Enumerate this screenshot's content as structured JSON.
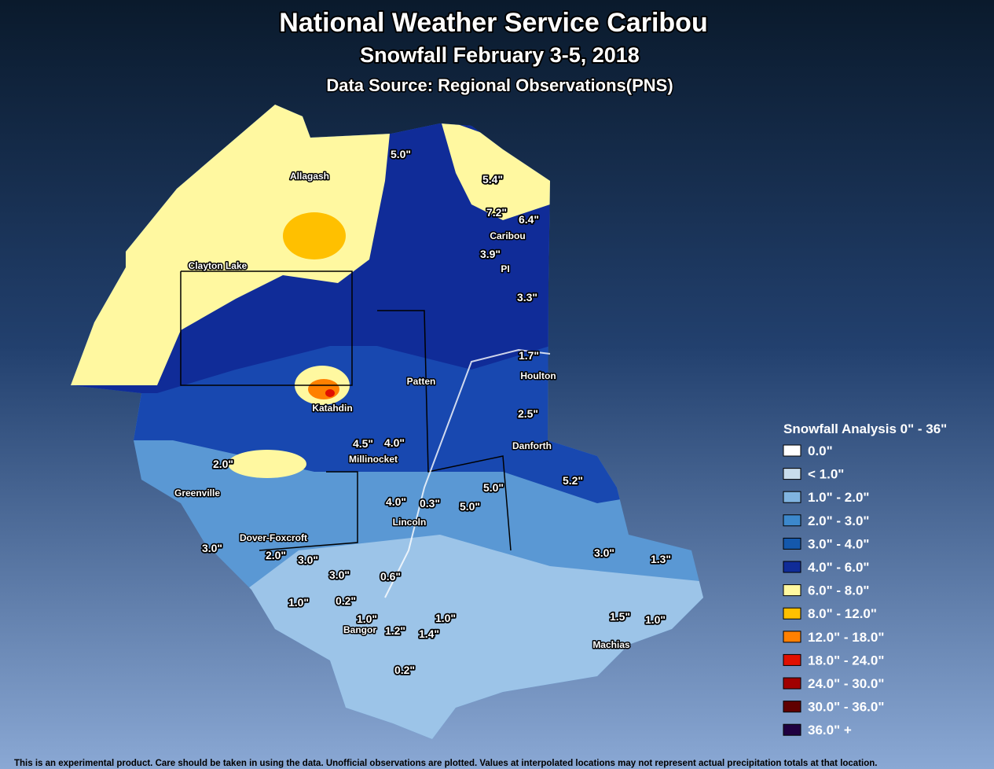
{
  "header": {
    "title": "National Weather Service Caribou",
    "subtitle": "Snowfall February 3-5, 2018",
    "source": "Data Source: Regional Observations(PNS)"
  },
  "places": [
    "Allagash",
    "Clayton Lake",
    "Caribou",
    "PI",
    "Patten",
    "Houlton",
    "Katahdin",
    "Millinocket",
    "Danforth",
    "Greenville",
    "Lincoln",
    "Dover-Foxcroft",
    "Bangor",
    "Machias"
  ],
  "observations": [
    "5.0\"",
    "5.4\"",
    "7.2\"",
    "6.4\"",
    "3.9\"",
    "3.3\"",
    "1.7\"",
    "2.5\"",
    "4.5\"",
    "4.0\"",
    "2.0\"",
    "5.0\"",
    "5.2\"",
    "4.0\"",
    "0.3\"",
    "5.0\"",
    "3.0\"",
    "2.0\"",
    "3.0\"",
    "3.0\"",
    "0.6\"",
    "3.0\"",
    "1.3\"",
    "1.0\"",
    "0.2\"",
    "1.0\"",
    "1.2\"",
    "1.4\"",
    "1.0\"",
    "1.5\"",
    "1.0\"",
    "0.2\""
  ],
  "legend": {
    "title": "Snowfall Analysis 0\" - 36\"",
    "items": [
      {
        "label": "0.0\"",
        "color": "#ffffff"
      },
      {
        "label": "< 1.0\"",
        "color": "#c8dcec"
      },
      {
        "label": "1.0\" - 2.0\"",
        "color": "#80b4e0"
      },
      {
        "label": "2.0\" - 3.0\"",
        "color": "#3c88cc"
      },
      {
        "label": "3.0\" - 4.0\"",
        "color": "#1458ac"
      },
      {
        "label": "4.0\" - 6.0\"",
        "color": "#102c98"
      },
      {
        "label": "6.0\" - 8.0\"",
        "color": "#fff8a0"
      },
      {
        "label": "8.0\" - 12.0\"",
        "color": "#ffc000"
      },
      {
        "label": "12.0\" - 18.0\"",
        "color": "#ff8000"
      },
      {
        "label": "18.0\" - 24.0\"",
        "color": "#e01000"
      },
      {
        "label": "24.0\" - 30.0\"",
        "color": "#a00000"
      },
      {
        "label": "30.0\" - 36.0\"",
        "color": "#600000"
      },
      {
        "label": "36.0\" +",
        "color": "#200040"
      }
    ]
  },
  "footer": "This is an experimental product. Care should be taken in using the data. Unofficial observations are plotted. Values at interpolated locations may not represent actual precipitation totals at that location."
}
